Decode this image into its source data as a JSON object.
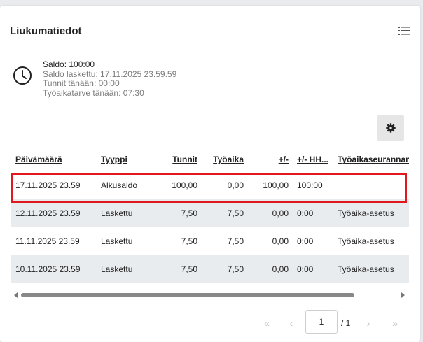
{
  "panel": {
    "title": "Liukumatiedot",
    "list_icon": "list-view-icon",
    "clock_icon": "clock-icon",
    "settings_icon": "gear-icon"
  },
  "stats": {
    "saldo": "Saldo: 100:00",
    "saldo_laskettu": "Saldo laskettu: 17.11.2025 23.59.59",
    "tunnit_tanaan": "Tunnit tänään: 00:00",
    "tyoaikatarve": "Työaikatarve tänään: 07:30"
  },
  "table": {
    "headers": [
      "Päivämäärä",
      "Tyyppi",
      "Tunnit",
      "Työaika",
      "+/-",
      "+/- HH...",
      "Työaikaseurannan"
    ],
    "rows": [
      [
        "17.11.2025 23.59",
        "Alkusaldo",
        "100,00",
        "0,00",
        "100,00",
        "100:00",
        ""
      ],
      [
        "12.11.2025 23.59",
        "Laskettu",
        "7,50",
        "7,50",
        "0,00",
        "0:00",
        "Työaika-asetus"
      ],
      [
        "11.11.2025 23.59",
        "Laskettu",
        "7,50",
        "7,50",
        "0,00",
        "0:00",
        "Työaika-asetus"
      ],
      [
        "10.11.2025 23.59",
        "Laskettu",
        "7,50",
        "7,50",
        "0,00",
        "0:00",
        "Työaika-asetus"
      ]
    ]
  },
  "pagination": {
    "first": "«",
    "prev": "‹",
    "current": "1",
    "total": "/ 1",
    "next": "›",
    "last": "»"
  },
  "colors": {
    "highlight": "#e0191f",
    "row_shade": "#e9ecef",
    "background": "#e9ebee"
  }
}
